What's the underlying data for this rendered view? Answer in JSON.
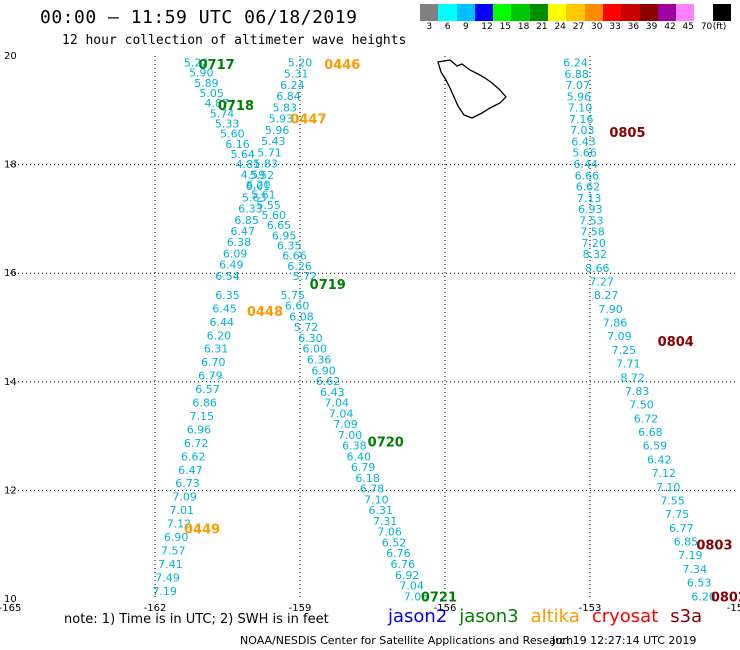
{
  "header": {
    "title": "00:00 – 11:59 UTC 06/18/2019",
    "subtitle": "12 hour collection of altimeter wave heights"
  },
  "legend": {
    "labels": [
      "3",
      "6",
      "9",
      "12",
      "15",
      "18",
      "21",
      "24",
      "27",
      "30",
      "33",
      "36",
      "39",
      "42",
      "45",
      "70",
      "(ft)"
    ],
    "colors": [
      "#808080",
      "#00ffff",
      "#00bfff",
      "#0000ff",
      "#00ff00",
      "#00c800",
      "#008c00",
      "#ffff00",
      "#ffc800",
      "#ff8c00",
      "#ff0000",
      "#c80000",
      "#8b0000",
      "#a000a0",
      "#ff80ff",
      "#ffffff",
      "#000000"
    ]
  },
  "chart_data": {
    "type": "scatter",
    "x_ticks": [
      "-165",
      "-162",
      "-159",
      "-156",
      "-153",
      "-15"
    ],
    "y_ticks": [
      "20",
      "18",
      "16",
      "14",
      "12",
      "10"
    ],
    "xlim": [
      -165,
      -150
    ],
    "ylim": [
      10,
      20
    ],
    "grid": true,
    "value_color": "#00b4d8",
    "pass_labels": [
      {
        "text": "0717",
        "lon": -161.1,
        "lat": 19.85,
        "color": "#008000"
      },
      {
        "text": "0446",
        "lon": -158.5,
        "lat": 19.85,
        "color": "#ff9900"
      },
      {
        "text": "0718",
        "lon": -160.7,
        "lat": 19.1,
        "color": "#008000"
      },
      {
        "text": "0447",
        "lon": -159.2,
        "lat": 18.85,
        "color": "#ff9900"
      },
      {
        "text": "0805",
        "lon": -152.6,
        "lat": 18.6,
        "color": "#8b0000"
      },
      {
        "text": "0719",
        "lon": -158.8,
        "lat": 15.8,
        "color": "#008000"
      },
      {
        "text": "0448",
        "lon": -160.1,
        "lat": 15.3,
        "color": "#ff9900"
      },
      {
        "text": "0804",
        "lon": -151.6,
        "lat": 14.75,
        "color": "#8b0000"
      },
      {
        "text": "0720",
        "lon": -157.6,
        "lat": 12.9,
        "color": "#008000"
      },
      {
        "text": "0449",
        "lon": -161.4,
        "lat": 11.3,
        "color": "#ff9900"
      },
      {
        "text": "0803",
        "lon": -150.8,
        "lat": 11.0,
        "color": "#8b0000"
      },
      {
        "text": "0721",
        "lon": -156.5,
        "lat": 10.05,
        "color": "#008000"
      },
      {
        "text": "0802",
        "lon": -150.5,
        "lat": 10.05,
        "color": "#8b0000"
      }
    ],
    "tracks": [
      {
        "pass": "0717",
        "start": [
          -161.15,
          19.88
        ],
        "end": [
          -158.9,
          15.95
        ],
        "values": [
          "5.22",
          "5.90",
          "5.89",
          "5.05",
          "4.87",
          "5.74",
          "5.33",
          "5.60",
          "6.16",
          "5.64",
          "4.81",
          "4.59",
          "6.20",
          "5.61",
          "5.55",
          "5.60",
          "6.65",
          "6.95",
          "6.35",
          "6.66",
          "6.26",
          "5.72"
        ]
      },
      {
        "pass": "0446",
        "start": [
          -159.0,
          19.88
        ],
        "end": [
          -160.5,
          15.95
        ],
        "values": [
          "5.20",
          "5.31",
          "6.24",
          "6.84",
          "5.83",
          "5.93",
          "5.96",
          "5.43",
          "5.71",
          "5.83",
          "5.52",
          "6.01",
          "5.63",
          "6.33",
          "6.85",
          "6.47",
          "6.38",
          "6.09",
          "6.49",
          "6.54"
        ]
      },
      {
        "pass": "0719",
        "start": [
          -159.15,
          15.6
        ],
        "end": [
          -156.6,
          10.05
        ],
        "values": [
          "5.75",
          "6.60",
          "6.08",
          "5.72",
          "6.30",
          "6.00",
          "6.36",
          "6.90",
          "6.62",
          "6.43",
          "7.04",
          "7.04",
          "7.09",
          "7.00",
          "6.38",
          "6.40",
          "6.79",
          "6.18",
          "6.78",
          "7.10",
          "6.31",
          "7.31",
          "7.06",
          "6.52",
          "6.76",
          "6.76",
          "6.92",
          "7.04",
          "7.06"
        ]
      },
      {
        "pass": "0448",
        "start": [
          -160.5,
          15.6
        ],
        "end": [
          -161.8,
          10.15
        ],
        "values": [
          "6.35",
          "6.45",
          "6.44",
          "6.20",
          "6.31",
          "6.70",
          "6.79",
          "6.57",
          "6.86",
          "7.15",
          "6.96",
          "6.72",
          "6.62",
          "6.47",
          "6.73",
          "7.09",
          "7.01",
          "7.12",
          "6.90",
          "7.57",
          "7.41",
          "7.49",
          "7.19"
        ]
      },
      {
        "pass": "0805",
        "start": [
          -153.3,
          19.88
        ],
        "end": [
          -152.9,
          16.35
        ],
        "values": [
          "6.24",
          "6.88",
          "7.07",
          "5.96",
          "7.10",
          "7.16",
          "7.03",
          "6.43",
          "5.66",
          "6.44",
          "6.66",
          "6.62",
          "7.13",
          "6.93",
          "7.53",
          "7.58",
          "7.20",
          "8.32"
        ]
      },
      {
        "pass": "0804",
        "start": [
          -152.85,
          16.1
        ],
        "end": [
          -150.65,
          10.05
        ],
        "values": [
          "8.66",
          "7.27",
          "8.27",
          "7.90",
          "7.86",
          "7.09",
          "7.25",
          "7.71",
          "8.72",
          "7.83",
          "7.50",
          "6.72",
          "6.68",
          "6.59",
          "6.42",
          "7.12",
          "7.10",
          "7.55",
          "7.75",
          "6.77",
          "6.85",
          "7.19",
          "7.34",
          "6.53",
          "6.20"
        ]
      }
    ]
  },
  "footer": {
    "note": "note:  1) Time is in UTC;  2) SWH is in feet",
    "satellites": [
      {
        "name": "jason2",
        "color": "#0000ff"
      },
      {
        "name": "jason3",
        "color": "#008000"
      },
      {
        "name": "altika",
        "color": "#ff9900"
      },
      {
        "name": "cryosat",
        "color": "#ff0000"
      },
      {
        "name": "s3a",
        "color": "#8b0000"
      }
    ],
    "credit": "NOAA/NESDIS Center for Satellite Applications and Research",
    "timestamp": "Jun 19 12:27:14 UTC 2019"
  }
}
